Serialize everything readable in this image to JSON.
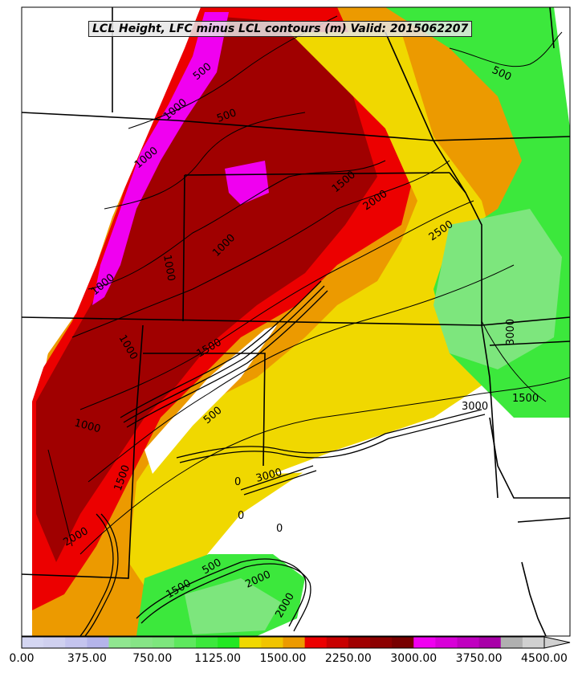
{
  "title": "LCL Height, LFC minus LCL contours (m) Valid: 2015062207",
  "colorbar": {
    "labels": [
      "0.00",
      "375.00",
      "750.00",
      "1125.00",
      "1500.00",
      "2250.00",
      "3000.00",
      "3750.00",
      "4500.00"
    ],
    "colors": [
      "#d4d6f2",
      "#cfd0ef",
      "#c4c4ee",
      "#b4b4ea",
      "#90e690",
      "#86e486",
      "#7de67d",
      "#5ee85e",
      "#3ce83c",
      "#22e822",
      "#f0d800",
      "#f0c400",
      "#ec9a00",
      "#ec0000",
      "#c80000",
      "#a00000",
      "#8c0000",
      "#780000",
      "#f000f0",
      "#d800d8",
      "#c000c0",
      "#a800a8",
      "#b0b0b0",
      "#d0d0d0"
    ]
  },
  "contour_labels": [
    "500",
    "500",
    "500",
    "1000",
    "1000",
    "1000",
    "1000",
    "1000",
    "1000",
    "1000",
    "1500",
    "1500",
    "1500",
    "1500",
    "1500",
    "2000",
    "2000",
    "2000",
    "2500",
    "3000",
    "3000",
    "3000",
    "500",
    "500",
    "2000",
    "0",
    "0",
    "0"
  ],
  "colors": {
    "ocean": "#ffffff",
    "border": "#000000"
  }
}
